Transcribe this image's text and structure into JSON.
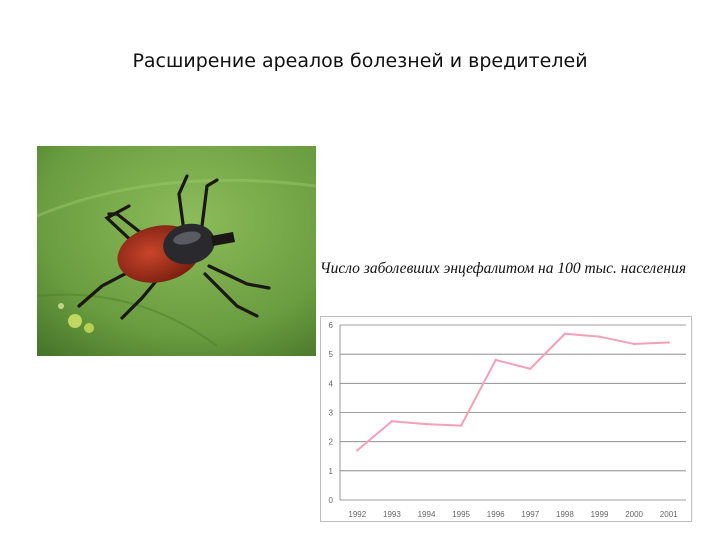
{
  "slide": {
    "title": "Расширение ареалов болезней и вредителей"
  },
  "photo": {
    "subject": "tick-on-leaf",
    "colors": {
      "leaf": "#6fa044",
      "body": "#a8301a",
      "shield": "#2a2a2e",
      "legs": "#1b1712"
    }
  },
  "chart_data": {
    "type": "line",
    "title": "Число заболевших энцефалитом на 100 тыс. населения",
    "xlabel": "",
    "ylabel": "",
    "categories": [
      "1992",
      "1993",
      "1994",
      "1995",
      "1996",
      "1997",
      "1998",
      "1999",
      "2000",
      "2001"
    ],
    "series": [
      {
        "values": [
          1.7,
          2.7,
          2.6,
          2.55,
          4.8,
          4.5,
          5.7,
          5.6,
          5.35,
          5.4
        ]
      }
    ],
    "yticks": [
      "0",
      "1",
      "2",
      "3",
      "4",
      "5",
      "6"
    ],
    "ylim": [
      0,
      6
    ],
    "grid": "horizontal",
    "line_color": "#f4a0b5"
  }
}
